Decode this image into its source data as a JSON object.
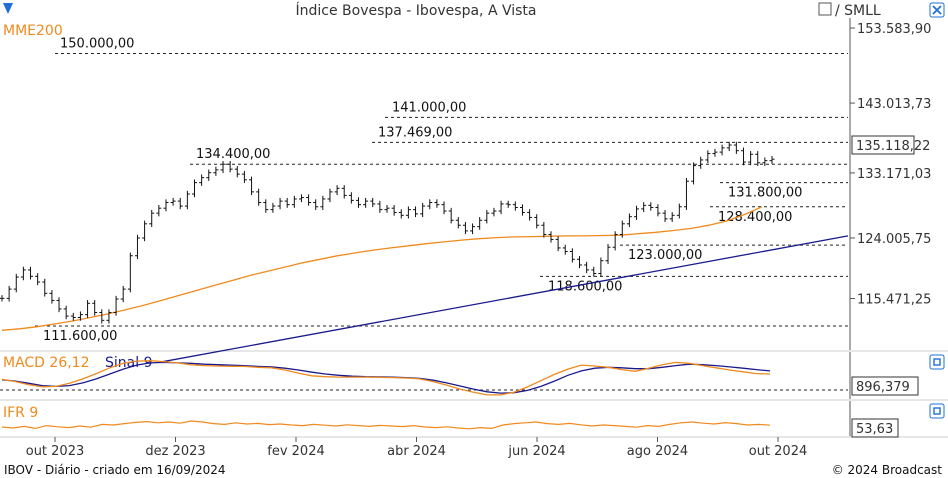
{
  "header": {
    "title": "Índice Bovespa - Ibovespa, A Vista",
    "toggle_label": "/ SMLL",
    "ma_label": "MME200"
  },
  "footer": {
    "left": "IBOV - Diário - criado em 16/09/2024",
    "right": "© 2024 Broadcast"
  },
  "colors": {
    "price": "#111111",
    "ma": "#f08a1e",
    "trend": "#1a1a8c",
    "macd": "#f08a1e",
    "signal": "#1a1a8c",
    "ifr": "#f08a1e",
    "accent": "#1e6fd9"
  },
  "chart_data": [
    {
      "type": "line",
      "title": "Índice Bovespa - Ibovespa, A Vista",
      "x_ticks": [
        "out 2023",
        "dez 2023",
        "fev 2024",
        "abr 2024",
        "jun 2024",
        "ago 2024",
        "out 2024"
      ],
      "y_ticks": [
        "153.583,90",
        "143.013,73",
        "133.171,03",
        "124.005,75",
        "115.471,25"
      ],
      "last_value_label": "135.118,22",
      "ylim": [
        108500,
        155000
      ],
      "levels": [
        {
          "value": 150000,
          "label": "150.000,00"
        },
        {
          "value": 141000,
          "label": "141.000,00"
        },
        {
          "value": 137469,
          "label": "137.469,00"
        },
        {
          "value": 134400,
          "label": "134.400,00"
        },
        {
          "value": 131800,
          "label": "131.800,00"
        },
        {
          "value": 128400,
          "label": "128.400,00"
        },
        {
          "value": 123000,
          "label": "123.000,00"
        },
        {
          "value": 118600,
          "label": "118.600,00"
        },
        {
          "value": 111600,
          "label": "111.600,00"
        }
      ],
      "series": [
        {
          "name": "Ibovespa",
          "values": [
            115500,
            116800,
            118500,
            119500,
            118600,
            117800,
            116200,
            115200,
            114000,
            113000,
            112800,
            113200,
            114800,
            113500,
            112400,
            113500,
            115400,
            116800,
            121500,
            124000,
            126000,
            127500,
            128200,
            129000,
            129200,
            128500,
            130200,
            131800,
            132500,
            133200,
            133600,
            134400,
            133700,
            133000,
            132200,
            130500,
            129000,
            128000,
            128500,
            129200,
            128700,
            129500,
            129700,
            129000,
            128400,
            129500,
            130500,
            131000,
            130000,
            129300,
            128700,
            129200,
            128800,
            128000,
            128200,
            127600,
            127200,
            128000,
            127400,
            128500,
            129000,
            128700,
            127800,
            126500,
            125800,
            125000,
            125600,
            126500,
            127500,
            127800,
            128800,
            128700,
            128300,
            127600,
            126900,
            125800,
            124500,
            123800,
            122600,
            122100,
            121000,
            120200,
            119500,
            119000,
            120800,
            122700,
            124500,
            126000,
            127000,
            128100,
            128600,
            128300,
            127500,
            126700,
            127200,
            128400,
            132000,
            134200,
            135000,
            135900,
            136100,
            136700,
            137100,
            136300,
            134700,
            135800,
            134600,
            134900,
            135100
          ]
        },
        {
          "name": "MME200",
          "values": [
            111000,
            111200,
            111500,
            111900,
            112300,
            112800,
            113300,
            113900,
            114500,
            115200,
            115900,
            116600,
            117300,
            118000,
            118700,
            119300,
            119900,
            120500,
            121000,
            121500,
            121900,
            122300,
            122600,
            122900,
            123200,
            123450,
            123700,
            123900,
            124050,
            124150,
            124200,
            124250,
            124300,
            124300,
            124350,
            124400,
            124600,
            124800,
            125050,
            125350,
            125800,
            126400,
            127300,
            128400
          ]
        },
        {
          "name": "Tendência",
          "values": [
            106500,
            124300
          ]
        }
      ]
    },
    {
      "type": "line",
      "title": "MACD 26,12",
      "legend": [
        "MACD 26,12",
        "Sinal 9"
      ],
      "last_value_label": "896,379",
      "series": [
        {
          "name": "MACD 26,12",
          "values": [
            -300,
            -800,
            -1500,
            -2000,
            -1900,
            -1200,
            -200,
            1000,
            2300,
            3300,
            3800,
            3900,
            3700,
            3400,
            3000,
            2800,
            2700,
            2600,
            2600,
            2400,
            2300,
            1800,
            1100,
            500,
            300,
            200,
            200,
            200,
            150,
            100,
            0,
            -200,
            -800,
            -1600,
            -2500,
            -3200,
            -3800,
            -3800,
            -3200,
            -2000,
            -600,
            800,
            2000,
            2900,
            2700,
            2400,
            1900,
            1500,
            2200,
            3000,
            3500,
            3300,
            2800,
            2300,
            1800,
            1400,
            1000,
            896
          ]
        },
        {
          "name": "Sinal 9",
          "values": [
            -400,
            -700,
            -1200,
            -1700,
            -1900,
            -1700,
            -1100,
            -200,
            900,
            2000,
            2900,
            3400,
            3500,
            3400,
            3300,
            3100,
            3000,
            2900,
            2800,
            2600,
            2500,
            2200,
            1800,
            1300,
            900,
            600,
            400,
            300,
            250,
            200,
            100,
            -100,
            -500,
            -1100,
            -1800,
            -2500,
            -3100,
            -3400,
            -3300,
            -2800,
            -1900,
            -700,
            600,
            1600,
            2200,
            2400,
            2300,
            2100,
            2100,
            2400,
            2800,
            3100,
            3000,
            2800,
            2500,
            2200,
            1900,
            1600
          ]
        }
      ]
    },
    {
      "type": "line",
      "title": "IFR 9",
      "last_value_label": "53,63",
      "ylim": [
        0,
        100
      ],
      "series": [
        {
          "name": "IFR 9",
          "values": [
            45,
            40,
            48,
            38,
            52,
            46,
            42,
            50,
            44,
            58,
            55,
            62,
            68,
            72,
            66,
            70,
            64,
            75,
            70,
            62,
            58,
            66,
            60,
            63,
            57,
            60,
            55,
            52,
            58,
            54,
            50,
            56,
            52,
            48,
            53,
            50,
            47,
            52,
            45,
            42,
            46,
            40,
            36,
            42,
            38,
            55,
            62,
            66,
            70,
            62,
            58,
            63,
            56,
            50,
            55,
            52,
            48,
            44,
            52,
            48,
            58,
            66,
            70,
            64,
            60,
            67,
            62,
            55,
            58,
            54
          ]
        }
      ]
    }
  ]
}
